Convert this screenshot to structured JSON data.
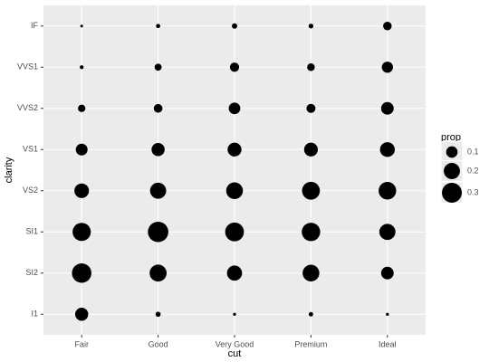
{
  "chart_data": {
    "type": "count",
    "x_label": "cut",
    "y_label": "clarity",
    "categories": [
      "Fair",
      "Good",
      "Very Good",
      "Premium",
      "Ideal"
    ],
    "y_categories": [
      "I1",
      "SI2",
      "SI1",
      "VS2",
      "VS1",
      "VVS2",
      "VVS1",
      "IF"
    ],
    "values": [
      [
        0.13,
        0.289,
        0.253,
        0.162,
        0.106,
        0.043,
        0.011,
        0.006
      ],
      [
        0.02,
        0.22,
        0.318,
        0.199,
        0.132,
        0.058,
        0.038,
        0.014
      ],
      [
        0.007,
        0.174,
        0.268,
        0.214,
        0.147,
        0.102,
        0.065,
        0.022
      ],
      [
        0.015,
        0.214,
        0.259,
        0.243,
        0.144,
        0.063,
        0.045,
        0.017
      ],
      [
        0.007,
        0.121,
        0.199,
        0.235,
        0.167,
        0.121,
        0.095,
        0.056
      ]
    ],
    "color": "#000000",
    "grid": true,
    "size_legend": {
      "title": "prop",
      "breaks": [
        0.1,
        0.2,
        0.3
      ]
    }
  }
}
